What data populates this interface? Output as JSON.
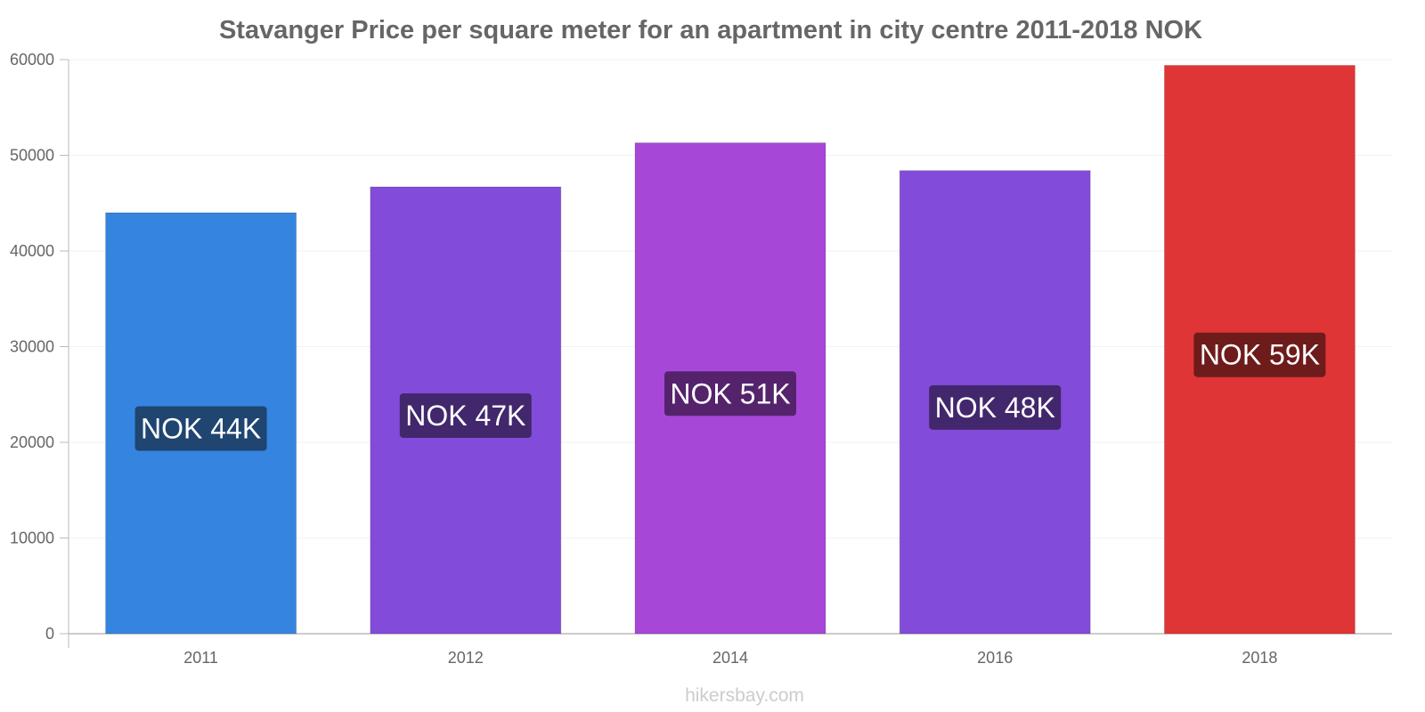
{
  "chart_data": {
    "type": "bar",
    "title": "Stavanger Price per square meter for an apartment in city centre 2011-2018 NOK",
    "xlabel": "",
    "ylabel": "",
    "categories": [
      "2011",
      "2012",
      "2014",
      "2016",
      "2018"
    ],
    "values": [
      44000,
      46700,
      51300,
      48400,
      59400
    ],
    "data_labels": [
      "NOK 44K",
      "NOK 47K",
      "NOK 51K",
      "NOK 48K",
      "NOK 59K"
    ],
    "ylim": [
      0,
      60000
    ],
    "yticks": [
      "0",
      "10000",
      "20000",
      "30000",
      "40000",
      "50000",
      "60000"
    ],
    "bar_colors": [
      "#3584e0",
      "#834bd9",
      "#a747d8",
      "#834bd9",
      "#e03536"
    ],
    "label_bg_colors": [
      "#1f4570",
      "#42276d",
      "#55236c",
      "#42276d",
      "#6e1b1b"
    ],
    "grid": true,
    "legend": "none"
  },
  "watermark": "hikersbay.com"
}
